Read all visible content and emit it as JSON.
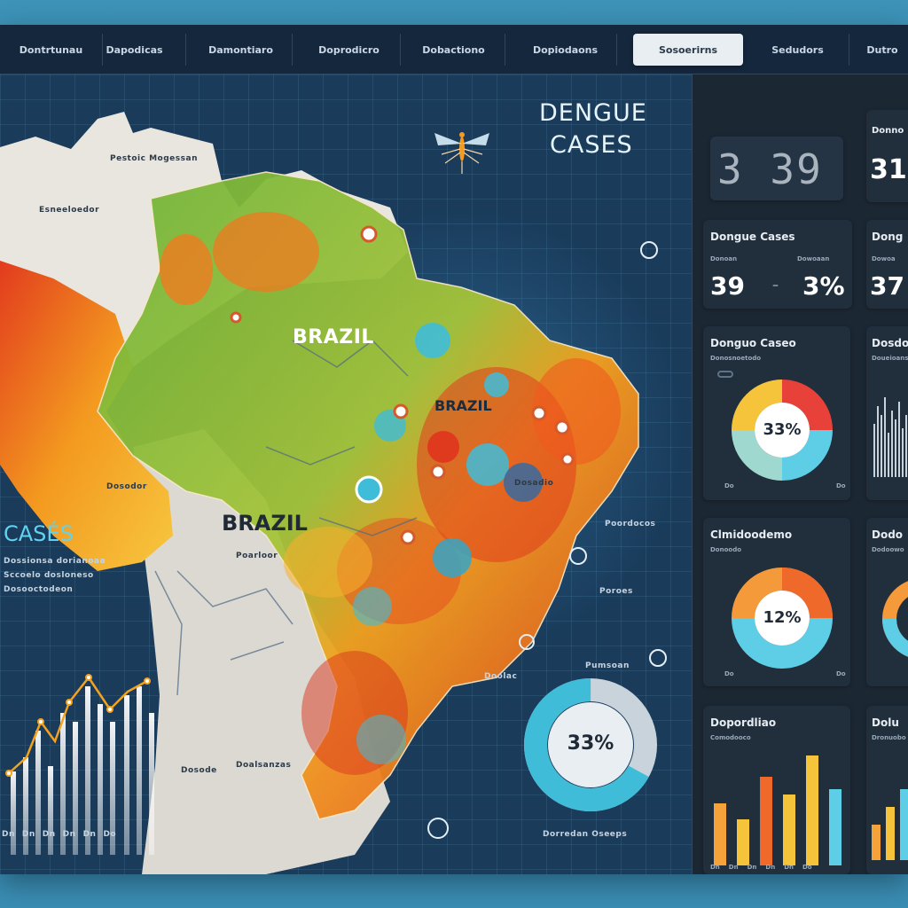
{
  "tabs": [
    {
      "label": "Dontrtunau"
    },
    {
      "label": "Dapodicas"
    },
    {
      "label": "Damontiaro"
    },
    {
      "label": "Doprodicro"
    },
    {
      "label": "Dobactiono"
    },
    {
      "label": "Dopiodaons"
    },
    {
      "label": "Sosoerirns",
      "active": true
    },
    {
      "label": "Sedudors"
    },
    {
      "label": "Dutro"
    }
  ],
  "header": {
    "title_line1": "DENGUE",
    "title_line2": "CASES",
    "mosquito_icon": "mosquito-icon"
  },
  "map": {
    "label_brazil_1": "BRAZIL",
    "label_brazil_2": "BRAZIL",
    "label_brazil_3": "BRAZIL",
    "region_labels": [
      "Pestoic Mogessan",
      "Esneeloedor",
      "Dosodor",
      "Poarloor",
      "Dosadio",
      "Poordocos",
      "Dosode",
      "Poroes",
      "Doolac",
      "Pumsoan",
      "Doalsanzas"
    ],
    "colors": {
      "high": "#e23b1e",
      "mid": "#f39a1f",
      "low": "#7fbf3a",
      "marker": "#3fbcd8"
    }
  },
  "left_panel": {
    "cases_label": "CASÉS",
    "text_lines": [
      "Dossionsa dorianoaa",
      "Sccoelo dosloneso",
      "Dosooctodeon"
    ],
    "tick_labels": [
      "Dn",
      "Dn",
      "Dn",
      "Dn",
      "Dn",
      "Do"
    ]
  },
  "donut_main": {
    "value_label": "33%",
    "caption": "Dorredan Oseeps",
    "percent": 33
  },
  "right": {
    "kpi1": {
      "digits": "3 39",
      "partial": "31"
    },
    "kpi1_label": "Donno",
    "kpi2": {
      "title": "Dongue Cases",
      "title2": "Dong",
      "sub1": "Donoan",
      "sub2": "Dowoaan",
      "sub3": "Dowoa",
      "value1": "39",
      "value2": "3%",
      "value3": "37"
    },
    "donut1": {
      "title": "Donguo Caseo",
      "title2": "Dosdo",
      "sub": "Donosnoetodo",
      "sub2": "Doueioans",
      "value_label": "33%",
      "legend": [
        "Do",
        "Do"
      ]
    },
    "donut2": {
      "title": "Clmidoodemo",
      "title2": "Dodo",
      "sub": "Donoodo",
      "sub2": "Dodoowo",
      "value_label": "12%",
      "legend": [
        "Do",
        "Do"
      ]
    },
    "bars": {
      "title": "Dopordliao",
      "title2": "Dolu",
      "sub": "Comodooco",
      "sub2": "Dronuobo",
      "tick_labels": [
        "Dn",
        "Dn",
        "Dn",
        "Dn",
        "Dn",
        "Do"
      ]
    }
  }
}
